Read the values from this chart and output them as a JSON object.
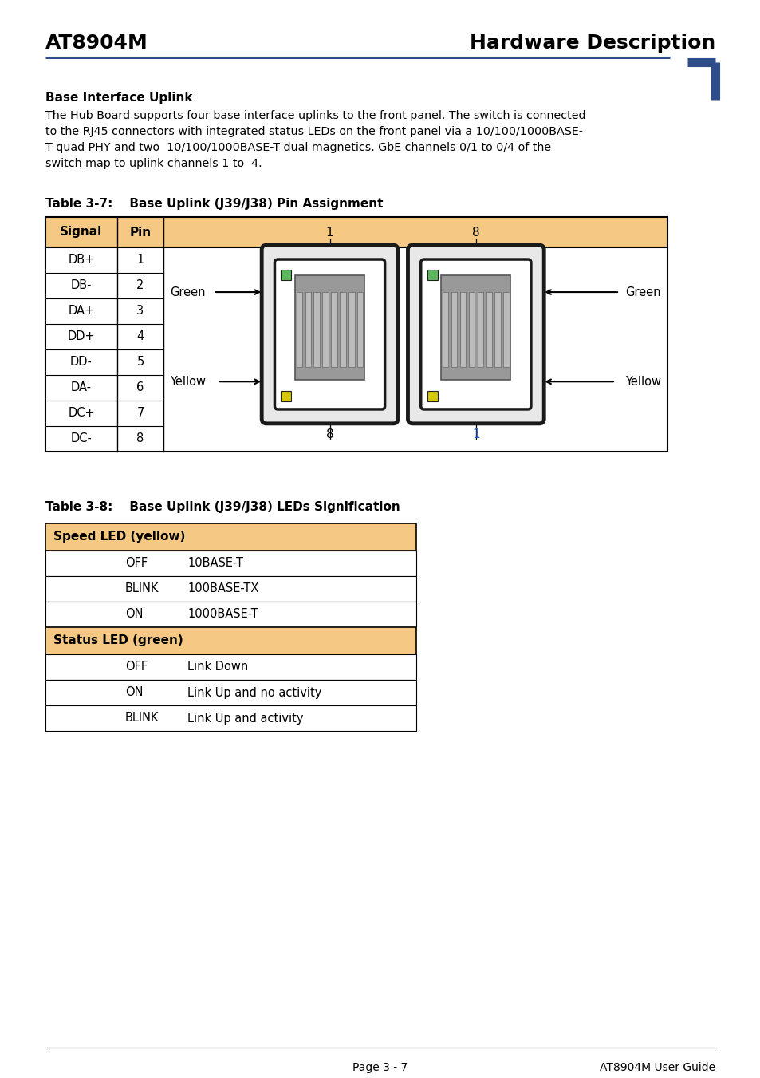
{
  "header_left": "AT8904M",
  "header_right": "Hardware Description",
  "header_color": "#2e4d8a",
  "corner_color": "#2e4d8a",
  "section_title": "Base Interface Uplink",
  "body_lines": [
    "The Hub Board supports four base interface uplinks to the front panel. The switch is connected",
    "to the RJ45 connectors with integrated status LEDs on the front panel via a 10/100/1000BASE-",
    "T quad PHY and two  10/100/1000BASE-T dual magnetics. GbE channels 0/1 to 0/4 of the",
    "switch map to uplink channels 1 to  4."
  ],
  "table1_title": "Table 3-7:    Base Uplink (J39/J38) Pin Assignment",
  "table1_header_bg": "#f5c883",
  "table1_rows": [
    [
      "DB+",
      "1"
    ],
    [
      "DB-",
      "2"
    ],
    [
      "DA+",
      "3"
    ],
    [
      "DD+",
      "4"
    ],
    [
      "DD-",
      "5"
    ],
    [
      "DA-",
      "6"
    ],
    [
      "DC+",
      "7"
    ],
    [
      "DC-",
      "8"
    ]
  ],
  "table2_title": "Table 3-8:    Base Uplink (J39/J38) LEDs Signification",
  "table2_header_bg": "#f5c883",
  "table2_sections": [
    {
      "header": "Speed LED (yellow)",
      "rows": [
        [
          "OFF",
          "10BASE-T"
        ],
        [
          "BLINK",
          "100BASE-TX"
        ],
        [
          "ON",
          "1000BASE-T"
        ]
      ]
    },
    {
      "header": "Status LED (green)",
      "rows": [
        [
          "OFF",
          "Link Down"
        ],
        [
          "ON",
          "Link Up and no activity"
        ],
        [
          "BLINK",
          "Link Up and activity"
        ]
      ]
    }
  ],
  "footer_text": "Page 3 - 7",
  "footer_right": "AT8904M User Guide",
  "rj45_green": "#5cb85c",
  "rj45_yellow": "#d4c800",
  "pin1_color": "#1a56c4"
}
